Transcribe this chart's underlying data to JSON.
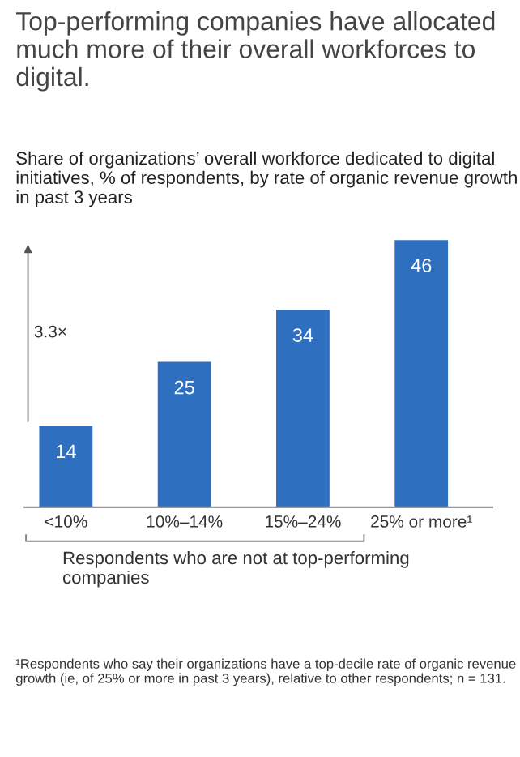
{
  "chart_data": {
    "type": "bar",
    "title": "Top-performing companies have allocated much more of their overall workforces to digital.",
    "subtitle": "Share of organizations’ overall workforce dedicated to digital initiatives, % of respondents, by rate of organic revenue growth in past 3 years",
    "categories": [
      "<10%",
      "10%–14%",
      "15%–24%",
      "25% or more¹"
    ],
    "values": [
      14,
      25,
      34,
      46
    ],
    "color": "#2f6fbf",
    "data_labels": true,
    "annotations": [
      "3.3×",
      "Respondents who are not at top-performing companies",
      "¹Respondents who say their organizations have a top-decile rate of organic revenue growth (ie, of 25% or more in past 3 years), relative to other respondents; n = 131."
    ]
  }
}
